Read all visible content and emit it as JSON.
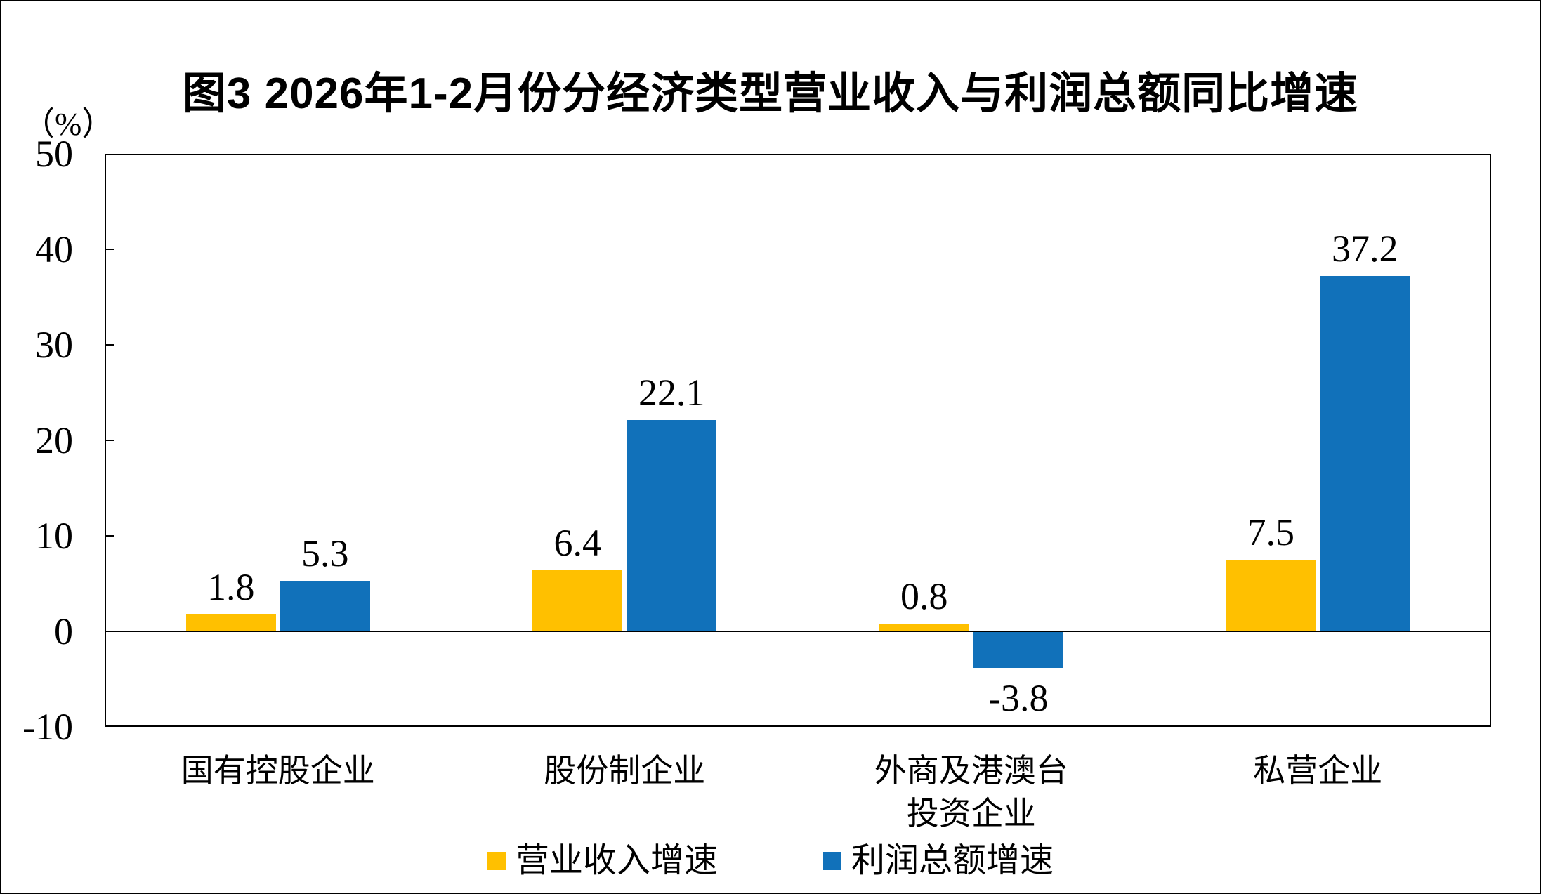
{
  "chart_data": {
    "type": "bar",
    "title": "图3 2026年1-2月份分经济类型营业收入与利润总额同比增速",
    "unit_label": "（%）",
    "categories": [
      "国有控股企业",
      "股份制企业",
      "外商及港澳台\n投资企业",
      "私营企业"
    ],
    "series": [
      {
        "name": "营业收入增速",
        "color": "#FFC000",
        "values": [
          1.8,
          6.4,
          0.8,
          7.5
        ]
      },
      {
        "name": "利润总额增速",
        "color": "#1171BA",
        "values": [
          5.3,
          22.1,
          -3.8,
          37.2
        ]
      }
    ],
    "ylim": [
      -10,
      50
    ],
    "yticks": [
      50,
      40,
      30,
      20,
      10,
      0,
      -10
    ],
    "ytick_interval": 10,
    "grid": "zero-line-only",
    "legend_position": "bottom",
    "value_labels_shown": true,
    "axis_color": "#000000",
    "text_color": "#000000",
    "background_color": "#FFFFFF"
  }
}
